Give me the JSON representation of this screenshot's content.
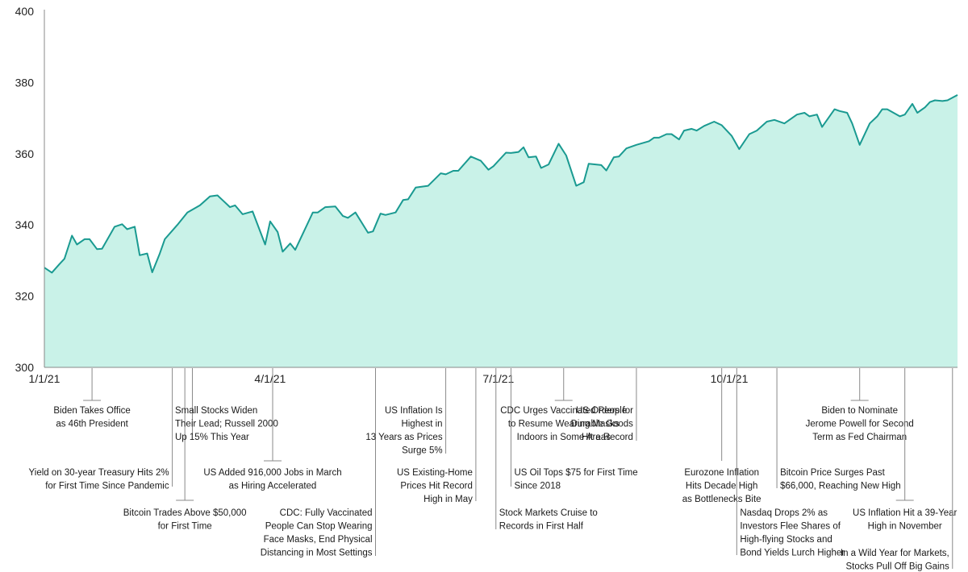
{
  "chart_data": {
    "type": "area",
    "title": "",
    "xlabel": "",
    "ylabel": "",
    "x_range": [
      "2021-01-01",
      "2021-12-31"
    ],
    "ylim": [
      300,
      400
    ],
    "y_ticks": [
      "300",
      "320",
      "340",
      "360",
      "380",
      "400"
    ],
    "x_ticks": [
      {
        "label": "1/1/21",
        "date": "2021-01-01"
      },
      {
        "label": "4/1/21",
        "date": "2021-04-01"
      },
      {
        "label": "7/1/21",
        "date": "2021-07-01"
      },
      {
        "label": "10/1/21",
        "date": "2021-10-01"
      }
    ],
    "grid": false,
    "legend": "none",
    "colors": {
      "line": "#1a9a91",
      "fill": "#c9f2e8",
      "axis": "#888888",
      "leader": "#8a8a8a"
    },
    "series": [
      {
        "points": [
          [
            "2021-01-01",
            328.0
          ],
          [
            "2021-01-04",
            326.6
          ],
          [
            "2021-01-07",
            329.0
          ],
          [
            "2021-01-09",
            330.5
          ],
          [
            "2021-01-12",
            337.0
          ],
          [
            "2021-01-14",
            334.5
          ],
          [
            "2021-01-17",
            336.0
          ],
          [
            "2021-01-19",
            336.0
          ],
          [
            "2021-01-22",
            333.2
          ],
          [
            "2021-01-24",
            333.3
          ],
          [
            "2021-01-29",
            339.5
          ],
          [
            "2021-02-01",
            340.2
          ],
          [
            "2021-02-03",
            338.8
          ],
          [
            "2021-02-06",
            339.5
          ],
          [
            "2021-02-08",
            331.5
          ],
          [
            "2021-02-11",
            332.0
          ],
          [
            "2021-02-13",
            326.7
          ],
          [
            "2021-02-16",
            332.0
          ],
          [
            "2021-02-18",
            336.0
          ],
          [
            "2021-02-23",
            340.0
          ],
          [
            "2021-02-27",
            343.5
          ],
          [
            "2021-03-04",
            345.5
          ],
          [
            "2021-03-08",
            348.0
          ],
          [
            "2021-03-11",
            348.3
          ],
          [
            "2021-03-13",
            347.0
          ],
          [
            "2021-03-16",
            345.0
          ],
          [
            "2021-03-18",
            345.5
          ],
          [
            "2021-03-21",
            343.0
          ],
          [
            "2021-03-25",
            343.8
          ],
          [
            "2021-03-30",
            334.5
          ],
          [
            "2021-04-01",
            341.0
          ],
          [
            "2021-04-04",
            338.0
          ],
          [
            "2021-04-06",
            332.5
          ],
          [
            "2021-04-09",
            334.8
          ],
          [
            "2021-04-11",
            333.0
          ],
          [
            "2021-04-14",
            337.5
          ],
          [
            "2021-04-18",
            343.5
          ],
          [
            "2021-04-20",
            343.5
          ],
          [
            "2021-04-23",
            345.0
          ],
          [
            "2021-04-27",
            345.2
          ],
          [
            "2021-04-30",
            342.5
          ],
          [
            "2021-05-02",
            342.0
          ],
          [
            "2021-05-05",
            343.5
          ],
          [
            "2021-05-10",
            337.8
          ],
          [
            "2021-05-12",
            338.2
          ],
          [
            "2021-05-15",
            343.2
          ],
          [
            "2021-05-17",
            342.8
          ],
          [
            "2021-05-21",
            343.5
          ],
          [
            "2021-05-24",
            347.0
          ],
          [
            "2021-05-26",
            347.2
          ],
          [
            "2021-05-29",
            350.5
          ],
          [
            "2021-06-03",
            351.0
          ],
          [
            "2021-06-08",
            354.5
          ],
          [
            "2021-06-10",
            354.2
          ],
          [
            "2021-06-13",
            355.2
          ],
          [
            "2021-06-15",
            355.2
          ],
          [
            "2021-06-20",
            359.2
          ],
          [
            "2021-06-24",
            358.0
          ],
          [
            "2021-06-27",
            355.5
          ],
          [
            "2021-06-29",
            356.5
          ],
          [
            "2021-07-04",
            360.3
          ],
          [
            "2021-07-06",
            360.2
          ],
          [
            "2021-07-09",
            360.5
          ],
          [
            "2021-07-11",
            361.8
          ],
          [
            "2021-07-13",
            359.0
          ],
          [
            "2021-07-16",
            359.2
          ],
          [
            "2021-07-18",
            356.0
          ],
          [
            "2021-07-21",
            357.0
          ],
          [
            "2021-07-25",
            362.8
          ],
          [
            "2021-07-28",
            359.5
          ],
          [
            "2021-08-01",
            351.0
          ],
          [
            "2021-08-04",
            352.0
          ],
          [
            "2021-08-06",
            357.2
          ],
          [
            "2021-08-11",
            356.8
          ],
          [
            "2021-08-13",
            355.3
          ],
          [
            "2021-08-16",
            359.0
          ],
          [
            "2021-08-18",
            359.2
          ],
          [
            "2021-08-21",
            361.5
          ],
          [
            "2021-08-25",
            362.5
          ],
          [
            "2021-08-30",
            363.5
          ],
          [
            "2021-09-01",
            364.5
          ],
          [
            "2021-09-03",
            364.5
          ],
          [
            "2021-09-06",
            365.5
          ],
          [
            "2021-09-08",
            365.5
          ],
          [
            "2021-09-11",
            364.0
          ],
          [
            "2021-09-13",
            366.5
          ],
          [
            "2021-09-16",
            367.0
          ],
          [
            "2021-09-18",
            366.5
          ],
          [
            "2021-09-21",
            367.8
          ],
          [
            "2021-09-25",
            369.0
          ],
          [
            "2021-09-28",
            368.0
          ],
          [
            "2021-10-02",
            365.0
          ],
          [
            "2021-10-05",
            361.3
          ],
          [
            "2021-10-09",
            365.5
          ],
          [
            "2021-10-12",
            366.5
          ],
          [
            "2021-10-16",
            369.0
          ],
          [
            "2021-10-19",
            369.5
          ],
          [
            "2021-10-23",
            368.5
          ],
          [
            "2021-10-25",
            369.5
          ],
          [
            "2021-10-28",
            371.0
          ],
          [
            "2021-10-31",
            371.5
          ],
          [
            "2021-11-02",
            370.5
          ],
          [
            "2021-11-05",
            371.0
          ],
          [
            "2021-11-07",
            367.5
          ],
          [
            "2021-11-12",
            372.5
          ],
          [
            "2021-11-14",
            372.0
          ],
          [
            "2021-11-17",
            371.5
          ],
          [
            "2021-11-19",
            368.5
          ],
          [
            "2021-11-22",
            362.5
          ],
          [
            "2021-11-26",
            368.5
          ],
          [
            "2021-11-29",
            370.5
          ],
          [
            "2021-12-01",
            372.5
          ],
          [
            "2021-12-03",
            372.5
          ],
          [
            "2021-12-08",
            370.5
          ],
          [
            "2021-12-10",
            371.0
          ],
          [
            "2021-12-13",
            374.0
          ],
          [
            "2021-12-15",
            371.5
          ],
          [
            "2021-12-18",
            373.0
          ],
          [
            "2021-12-20",
            374.5
          ],
          [
            "2021-12-22",
            375.0
          ],
          [
            "2021-12-25",
            374.8
          ],
          [
            "2021-12-27",
            375.0
          ],
          [
            "2021-12-31",
            376.5
          ]
        ]
      }
    ],
    "annotations": [
      {
        "date": "2021-01-20",
        "lines": [
          "Biden Takes Office",
          "as 46th President"
        ],
        "align": "middle"
      },
      {
        "date": "2021-02-21",
        "lines": [
          "Yield on 30-year Treasury Hits 2%",
          "for First Time Since Pandemic"
        ],
        "align": "end"
      },
      {
        "date": "2021-02-26",
        "lines": [
          "Bitcoin Trades Above $50,000",
          "for First Time"
        ],
        "align": "middle"
      },
      {
        "date": "2021-03-01",
        "lines": [
          "Small Stocks Widen",
          "Their Lead; Russell 2000",
          "Up 15% This Year"
        ],
        "align": "start"
      },
      {
        "date": "2021-04-02",
        "lines": [
          "US Added 916,000 Jobs in March",
          "as Hiring Accelerated"
        ],
        "align": "middle"
      },
      {
        "date": "2021-05-13",
        "lines": [
          "CDC: Fully Vaccinated",
          "People Can Stop Wearing",
          "Face Masks, End Physical",
          "Distancing in Most Settings"
        ],
        "align": "end"
      },
      {
        "date": "2021-06-10",
        "lines": [
          "US Inflation Is",
          "Highest in",
          "13 Years as Prices",
          "Surge 5%"
        ],
        "align": "end"
      },
      {
        "date": "2021-06-22",
        "lines": [
          "US Existing-Home",
          "Prices Hit Record",
          "High in May"
        ],
        "align": "end"
      },
      {
        "date": "2021-06-30",
        "lines": [
          "Stock Markets Cruise to",
          "Records in First Half"
        ],
        "align": "start"
      },
      {
        "date": "2021-07-06",
        "lines": [
          "US Oil Tops $75 for First Time",
          "Since 2018"
        ],
        "align": "start"
      },
      {
        "date": "2021-07-27",
        "lines": [
          "CDC Urges Vaccinated People",
          "to Resume Wearing Masks",
          "Indoors in Some Areas"
        ],
        "align": "middle"
      },
      {
        "date": "2021-08-25",
        "lines": [
          "US Orders for",
          "Durable Goods",
          "Hit a Record"
        ],
        "align": "end"
      },
      {
        "date": "2021-09-28",
        "lines": [
          "Eurozone Inflation",
          "Hits Decade High",
          "as Bottlenecks Bite"
        ],
        "align": "middle"
      },
      {
        "date": "2021-10-04",
        "lines": [
          "Nasdaq Drops 2% as",
          "Investors Flee Shares of",
          "High-flying Stocks and",
          "Bond Yields Lurch Higher"
        ],
        "align": "start"
      },
      {
        "date": "2021-10-20",
        "lines": [
          "Bitcoin Price Surges Past",
          "$66,000, Reaching New High"
        ],
        "align": "start"
      },
      {
        "date": "2021-11-22",
        "lines": [
          "Biden to Nominate",
          "Jerome Powell for Second",
          "Term as Fed Chairman"
        ],
        "align": "middle"
      },
      {
        "date": "2021-12-10",
        "lines": [
          "US Inflation Hit a 39-Year",
          "High in November"
        ],
        "align": "middle"
      },
      {
        "date": "2021-12-29",
        "lines": [
          "In a Wild Year for Markets,",
          "Stocks Pull Off Big Gains"
        ],
        "align": "end"
      }
    ]
  }
}
